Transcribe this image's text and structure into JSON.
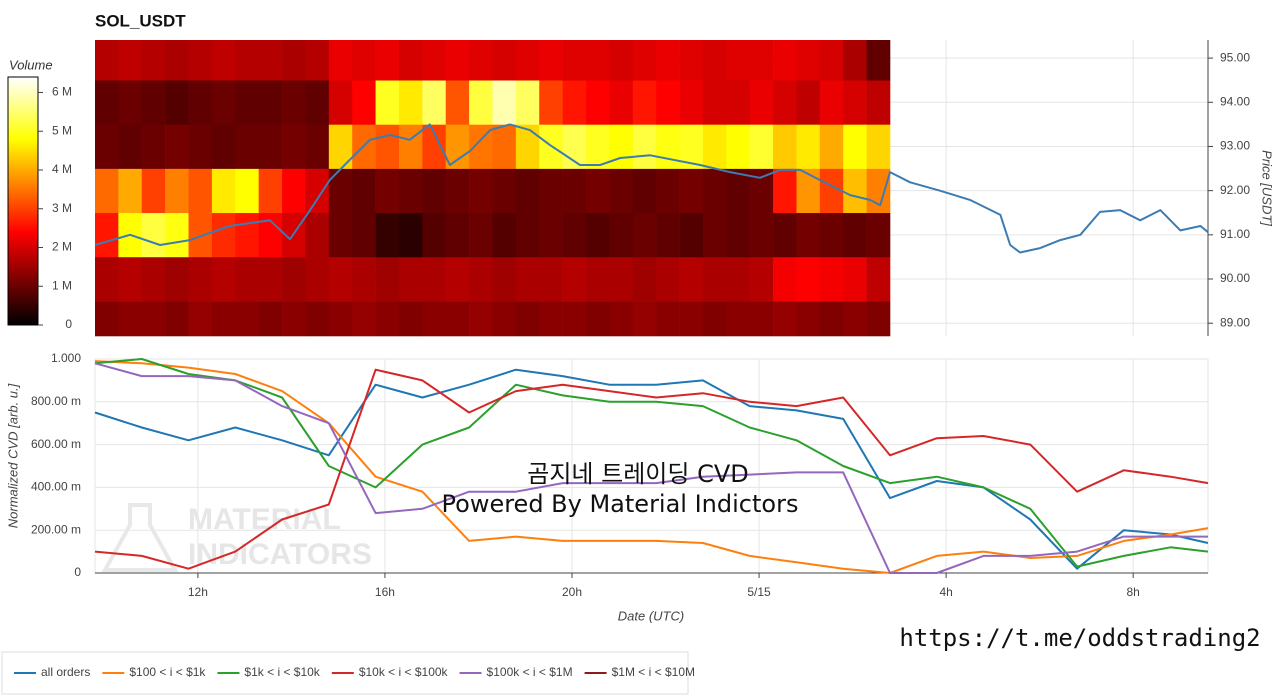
{
  "chart_data": [
    {
      "type": "heatmap",
      "title": "SOL_USDT",
      "zlabel": "Volume",
      "ylabel": "Price [USDT]",
      "colormap": "hot",
      "xlim": [
        9.8,
        33.6
      ],
      "ylim": [
        88.71,
        95.41
      ],
      "yticks": [
        {
          "value": 89,
          "label": "89.00"
        },
        {
          "value": 90,
          "label": "90.00"
        },
        {
          "value": 91,
          "label": "91.00"
        },
        {
          "value": 92,
          "label": "92.00"
        },
        {
          "value": 93,
          "label": "93.00"
        },
        {
          "value": 94,
          "label": "94.00"
        },
        {
          "value": 95,
          "label": "95.00"
        }
      ],
      "zlim": [
        0,
        6400000.0
      ],
      "zticks": [
        0,
        {
          "value": 1000000.0,
          "label": "1 M"
        },
        {
          "value": 2000000.0,
          "label": "2 M"
        },
        {
          "value": 3000000.0,
          "label": "3 M"
        },
        {
          "value": 4000000.0,
          "label": "4 M"
        },
        {
          "value": 5000000.0,
          "label": "5 M"
        },
        {
          "value": 6000000.0,
          "label": "6 M"
        }
      ],
      "x_bins": [
        9.8,
        10.3,
        10.8,
        11.3,
        11.8,
        12.3,
        12.8,
        13.3,
        13.8,
        14.3,
        14.8,
        15.3,
        15.8,
        16.3,
        16.8,
        17.3,
        17.8,
        18.3,
        18.8,
        19.3,
        19.8,
        20.3,
        20.8,
        21.3,
        21.8,
        22.3,
        22.8,
        23.3,
        23.8,
        24.3,
        24.8,
        25.3,
        25.8,
        26.3,
        26.8
      ],
      "y_bins": [
        88.71,
        89.5,
        90.5,
        91.5,
        92.5,
        93.5,
        94.5,
        95.41
      ],
      "z": [
        [
          1200000.0,
          1300000.0,
          1300000.0,
          1200000.0,
          1400000.0,
          1300000.0,
          1300000.0,
          1200000.0,
          1300000.0,
          1200000.0,
          1300000.0,
          1400000.0,
          1300000.0,
          1200000.0,
          1300000.0,
          1300000.0,
          1400000.0,
          1300000.0,
          1200000.0,
          1300000.0,
          1300000.0,
          1200000.0,
          1300000.0,
          1400000.0,
          1300000.0,
          1300000.0,
          1200000.0,
          1300000.0,
          1300000.0,
          1400000.0,
          1300000.0,
          1200000.0,
          1300000.0,
          1200000.0
        ],
        [
          1600000.0,
          1700000.0,
          1600000.0,
          1500000.0,
          1600000.0,
          1700000.0,
          1600000.0,
          1600000.0,
          1500000.0,
          1600000.0,
          1700000.0,
          1600000.0,
          1500000.0,
          1600000.0,
          1600000.0,
          1700000.0,
          1600000.0,
          1500000.0,
          1600000.0,
          1600000.0,
          1700000.0,
          1600000.0,
          1600000.0,
          1500000.0,
          1600000.0,
          1700000.0,
          1600000.0,
          1600000.0,
          1700000.0,
          2300000.0,
          2400000.0,
          2300000.0,
          2200000.0,
          1800000.0
        ],
        [
          2600000.0,
          4800000.0,
          5200000.0,
          4900000.0,
          3200000.0,
          2800000.0,
          2600000.0,
          2400000.0,
          2000000.0,
          1600000.0,
          1000000.0,
          900000.0,
          500000.0,
          400000.0,
          800000.0,
          900000.0,
          1000000.0,
          800000.0,
          900000.0,
          1000000.0,
          900000.0,
          800000.0,
          900000.0,
          1000000.0,
          900000.0,
          800000.0,
          1000000.0,
          900000.0,
          1000000.0,
          900000.0,
          1100000.0,
          1000000.0,
          900000.0,
          1000000.0
        ],
        [
          3400000.0,
          4000000.0,
          3000000.0,
          3600000.0,
          3200000.0,
          4600000.0,
          4800000.0,
          3000000.0,
          2400000.0,
          2000000.0,
          1000000.0,
          900000.0,
          1100000.0,
          1000000.0,
          900000.0,
          1000000.0,
          1100000.0,
          1000000.0,
          900000.0,
          1000000.0,
          1000000.0,
          1100000.0,
          1000000.0,
          900000.0,
          1000000.0,
          1100000.0,
          1000000.0,
          900000.0,
          1000000.0,
          2600000.0,
          3800000.0,
          3000000.0,
          4200000.0,
          3600000.0
        ],
        [
          1000000.0,
          900000.0,
          1000000.0,
          1100000.0,
          1000000.0,
          900000.0,
          1000000.0,
          1000000.0,
          1100000.0,
          1000000.0,
          4400000.0,
          3400000.0,
          3200000.0,
          3600000.0,
          3000000.0,
          3800000.0,
          3500000.0,
          3400000.0,
          4400000.0,
          5000000.0,
          5300000.0,
          5000000.0,
          4800000.0,
          5200000.0,
          4900000.0,
          5000000.0,
          4600000.0,
          4800000.0,
          5100000.0,
          4300000.0,
          4600000.0,
          4000000.0,
          4800000.0,
          4400000.0
        ],
        [
          900000.0,
          1000000.0,
          900000.0,
          800000.0,
          900000.0,
          1000000.0,
          900000.0,
          900000.0,
          1000000.0,
          900000.0,
          2000000.0,
          2400000.0,
          5000000.0,
          4600000.0,
          5400000.0,
          3200000.0,
          5200000.0,
          5900000.0,
          5400000.0,
          3000000.0,
          2600000.0,
          2400000.0,
          2200000.0,
          2600000.0,
          2400000.0,
          2200000.0,
          2000000.0,
          2000000.0,
          2200000.0,
          2000000.0,
          1800000.0,
          2200000.0,
          2000000.0,
          1800000.0
        ],
        [
          1700000.0,
          1800000.0,
          1700000.0,
          1600000.0,
          1700000.0,
          1800000.0,
          1700000.0,
          1700000.0,
          1600000.0,
          1700000.0,
          2200000.0,
          2100000.0,
          2200000.0,
          2000000.0,
          2100000.0,
          2200000.0,
          2100000.0,
          2000000.0,
          2100000.0,
          2200000.0,
          2100000.0,
          2100000.0,
          2000000.0,
          2100000.0,
          2200000.0,
          2100000.0,
          2000000.0,
          2100000.0,
          2100000.0,
          2200000.0,
          2100000.0,
          2000000.0,
          1600000.0,
          900000.0
        ]
      ],
      "series": [
        {
          "color": "#3b7cb4",
          "x": [
            9.8,
            10.55,
            11.19,
            11.83,
            12.68,
            13.54,
            13.97,
            14.4,
            14.82,
            15.25,
            15.68,
            16.11,
            16.53,
            16.96,
            17.39,
            17.82,
            18.25,
            18.67,
            19.1,
            19.53,
            20.17,
            20.6,
            21.03,
            21.67,
            22.74,
            23.38,
            24.02,
            24.45,
            24.88,
            25.3,
            25.95,
            26.37,
            26.59,
            26.8,
            27.23,
            27.87,
            28.51,
            29.16,
            29.37,
            29.58,
            30.01,
            30.44,
            30.87,
            31.29,
            31.72,
            32.15,
            32.58,
            33.01,
            33.44,
            33.6
          ],
          "values": [
            90.77,
            91.0,
            90.77,
            90.88,
            91.2,
            91.33,
            90.9,
            91.56,
            92.24,
            92.7,
            93.15,
            93.26,
            93.15,
            93.5,
            92.58,
            92.9,
            93.37,
            93.5,
            93.37,
            93.03,
            92.58,
            92.58,
            92.74,
            92.8,
            92.58,
            92.42,
            92.29,
            92.47,
            92.47,
            92.24,
            91.9,
            91.79,
            91.67,
            92.42,
            92.19,
            92.0,
            91.79,
            91.45,
            90.77,
            90.6,
            90.7,
            90.88,
            91.0,
            91.52,
            91.56,
            91.33,
            91.56,
            91.1,
            91.2,
            91.06
          ]
        }
      ]
    },
    {
      "type": "line",
      "xlabel": "Date (UTC)",
      "ylabel": "Normalized CVD [arb. u.]",
      "legend": "bottom",
      "xlim": [
        9.8,
        33.6
      ],
      "ylim": [
        0,
        1
      ],
      "xticks": [
        {
          "value": 12,
          "label": "12h"
        },
        {
          "value": 16,
          "label": "16h"
        },
        {
          "value": 20,
          "label": "20h"
        },
        {
          "value": 24,
          "label": "5/15"
        },
        {
          "value": 28,
          "label": "4h"
        },
        {
          "value": 32,
          "label": "8h"
        }
      ],
      "yticks": [
        0,
        {
          "value": 0.2,
          "label": "200.00 m"
        },
        {
          "value": 0.4,
          "label": "400.00 m"
        },
        {
          "value": 0.6,
          "label": "600.00 m"
        },
        {
          "value": 0.8,
          "label": "800.00 m"
        },
        {
          "value": 1,
          "label": "1.000"
        }
      ],
      "x": [
        9.8,
        10.8,
        11.8,
        12.8,
        13.8,
        14.8,
        15.8,
        16.8,
        17.8,
        18.8,
        19.8,
        20.8,
        21.8,
        22.8,
        23.8,
        24.8,
        25.8,
        26.8,
        27.8,
        28.8,
        29.8,
        30.8,
        31.8,
        32.8,
        33.6
      ],
      "series": [
        {
          "name": "all orders",
          "color": "#1f77b4",
          "values": [
            0.75,
            0.68,
            0.62,
            0.68,
            0.62,
            0.55,
            0.88,
            0.82,
            0.88,
            0.95,
            0.92,
            0.88,
            0.88,
            0.9,
            0.78,
            0.76,
            0.72,
            0.35,
            0.43,
            0.4,
            0.25,
            0.02,
            0.2,
            0.18,
            0.14
          ]
        },
        {
          "name": "$100 < i < $1k",
          "color": "#ff7f0e",
          "values": [
            0.99,
            0.98,
            0.96,
            0.93,
            0.85,
            0.7,
            0.45,
            0.38,
            0.15,
            0.17,
            0.15,
            0.15,
            0.15,
            0.14,
            0.08,
            0.05,
            0.02,
            0.0,
            0.08,
            0.1,
            0.07,
            0.08,
            0.15,
            0.18,
            0.21
          ]
        },
        {
          "name": "$1k < i < $10k",
          "color": "#2ca02c",
          "values": [
            0.98,
            1.0,
            0.93,
            0.9,
            0.82,
            0.5,
            0.4,
            0.6,
            0.68,
            0.88,
            0.83,
            0.8,
            0.8,
            0.78,
            0.68,
            0.62,
            0.5,
            0.42,
            0.45,
            0.4,
            0.3,
            0.03,
            0.08,
            0.12,
            0.1
          ]
        },
        {
          "name": "$10k < i < $100k",
          "color": "#d62728",
          "values": [
            0.1,
            0.08,
            0.02,
            0.1,
            0.25,
            0.32,
            0.95,
            0.9,
            0.75,
            0.85,
            0.88,
            0.85,
            0.82,
            0.84,
            0.8,
            0.78,
            0.82,
            0.55,
            0.63,
            0.64,
            0.6,
            0.38,
            0.48,
            0.45,
            0.42
          ]
        },
        {
          "name": "$100k < i < $1M",
          "color": "#9467bd",
          "values": [
            0.98,
            0.92,
            0.92,
            0.9,
            0.78,
            0.7,
            0.28,
            0.3,
            0.38,
            0.38,
            0.42,
            0.42,
            0.42,
            0.45,
            0.46,
            0.47,
            0.47,
            0.0,
            0.0,
            0.08,
            0.08,
            0.1,
            0.17,
            0.17,
            0.17
          ]
        },
        {
          "name": "$1M < i < $10M",
          "color": "#8c1c1c",
          "values": [
            null,
            null,
            null,
            null,
            null,
            null,
            null,
            null,
            null,
            null,
            null,
            null,
            null,
            null,
            null,
            null,
            null,
            null,
            null,
            null,
            null,
            null,
            null,
            null,
            null
          ]
        }
      ],
      "annotations": [
        "곰지네 트레이딩 CVD",
        "Powered By Material Indictors",
        "https://t.me/oddstrading2",
        "MATERIAL",
        "INDICATORS"
      ]
    }
  ]
}
